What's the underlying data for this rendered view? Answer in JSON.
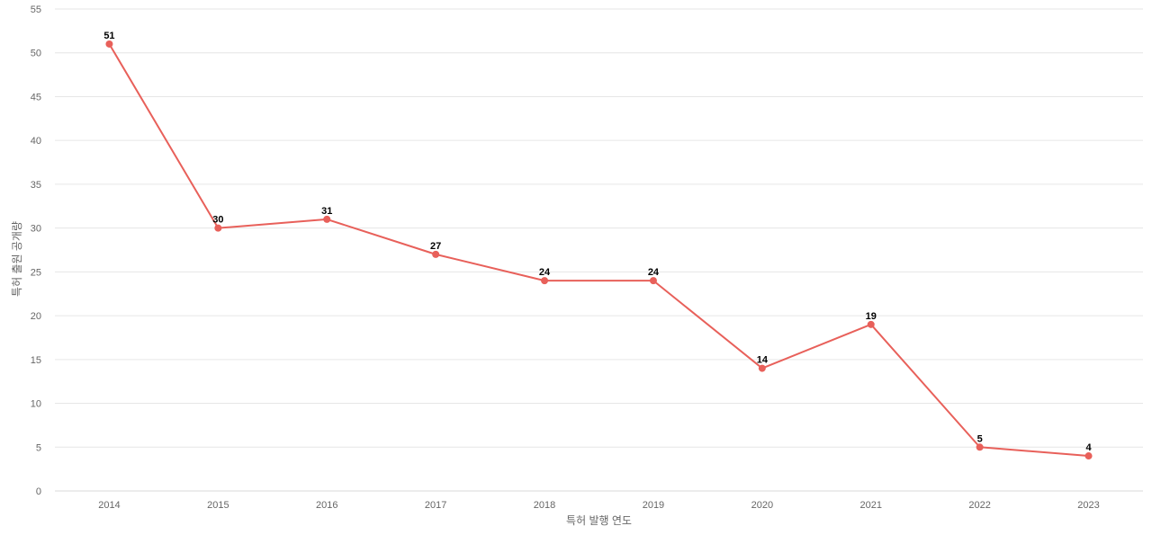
{
  "chart_data": {
    "type": "line",
    "title": "",
    "xlabel": "특허 발행 연도",
    "ylabel": "특허 출원 공개량",
    "categories": [
      "2014",
      "2015",
      "2016",
      "2017",
      "2018",
      "2019",
      "2020",
      "2021",
      "2022",
      "2023"
    ],
    "series": [
      {
        "values": [
          51,
          30,
          31,
          27,
          24,
          24,
          14,
          19,
          5,
          4
        ],
        "color": "#e8605a"
      }
    ],
    "ylim": [
      0,
      55
    ],
    "yticks": [
      0,
      5,
      10,
      15,
      20,
      25,
      30,
      35,
      40,
      45,
      50,
      55
    ],
    "grid": true,
    "data_labels": true,
    "legend": "none"
  }
}
